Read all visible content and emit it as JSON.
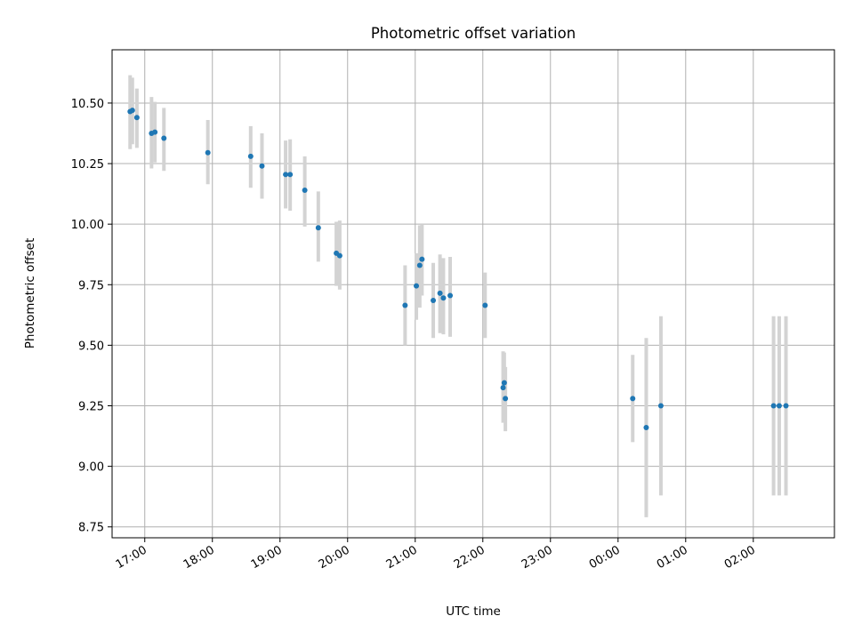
{
  "chart_data": {
    "type": "scatter",
    "title": "Photometric offset variation",
    "xlabel": "UTC time",
    "ylabel": "Photometric offset",
    "x_ticks": [
      "17:00",
      "18:00",
      "19:00",
      "20:00",
      "21:00",
      "22:00",
      "23:00",
      "00:00",
      "01:00",
      "02:00"
    ],
    "y_ticks": [
      "8.75",
      "9.00",
      "9.25",
      "9.50",
      "9.75",
      "10.00",
      "10.25",
      "10.50"
    ],
    "ylim": [
      8.705,
      10.72
    ],
    "xlim": [
      "16:31",
      "27:12"
    ],
    "grid": true,
    "marker_color": "#1f77b4",
    "errorbar_color": "#d3d3d3",
    "points": [
      {
        "t": "16:47",
        "y": 10.465,
        "lo": 10.31,
        "hi": 10.615
      },
      {
        "t": "16:49",
        "y": 10.47,
        "lo": 10.33,
        "hi": 10.605
      },
      {
        "t": "16:53",
        "y": 10.44,
        "lo": 10.315,
        "hi": 10.56
      },
      {
        "t": "17:06",
        "y": 10.375,
        "lo": 10.23,
        "hi": 10.525
      },
      {
        "t": "17:09",
        "y": 10.38,
        "lo": 10.255,
        "hi": 10.505
      },
      {
        "t": "17:17",
        "y": 10.355,
        "lo": 10.22,
        "hi": 10.48
      },
      {
        "t": "17:56",
        "y": 10.295,
        "lo": 10.165,
        "hi": 10.43
      },
      {
        "t": "18:34",
        "y": 10.28,
        "lo": 10.15,
        "hi": 10.405
      },
      {
        "t": "18:44",
        "y": 10.24,
        "lo": 10.105,
        "hi": 10.375
      },
      {
        "t": "19:05",
        "y": 10.205,
        "lo": 10.065,
        "hi": 10.345
      },
      {
        "t": "19:09",
        "y": 10.205,
        "lo": 10.055,
        "hi": 10.35
      },
      {
        "t": "19:22",
        "y": 10.14,
        "lo": 9.99,
        "hi": 10.28
      },
      {
        "t": "19:34",
        "y": 9.985,
        "lo": 9.845,
        "hi": 10.135
      },
      {
        "t": "19:50",
        "y": 9.88,
        "lo": 9.745,
        "hi": 10.01
      },
      {
        "t": "19:53",
        "y": 9.87,
        "lo": 9.73,
        "hi": 10.015
      },
      {
        "t": "20:51",
        "y": 9.665,
        "lo": 9.5,
        "hi": 9.83
      },
      {
        "t": "21:01",
        "y": 9.745,
        "lo": 9.605,
        "hi": 9.88
      },
      {
        "t": "21:04",
        "y": 9.83,
        "lo": 9.655,
        "hi": 9.995
      },
      {
        "t": "21:06",
        "y": 9.855,
        "lo": 9.705,
        "hi": 10.0
      },
      {
        "t": "21:16",
        "y": 9.685,
        "lo": 9.53,
        "hi": 9.84
      },
      {
        "t": "21:22",
        "y": 9.715,
        "lo": 9.55,
        "hi": 9.875
      },
      {
        "t": "21:25",
        "y": 9.695,
        "lo": 9.545,
        "hi": 9.86
      },
      {
        "t": "21:31",
        "y": 9.705,
        "lo": 9.535,
        "hi": 9.865
      },
      {
        "t": "22:02",
        "y": 9.665,
        "lo": 9.53,
        "hi": 9.8
      },
      {
        "t": "22:18",
        "y": 9.325,
        "lo": 9.18,
        "hi": 9.475
      },
      {
        "t": "22:19",
        "y": 9.345,
        "lo": 9.19,
        "hi": 9.47
      },
      {
        "t": "22:20",
        "y": 9.28,
        "lo": 9.145,
        "hi": 9.41
      },
      {
        "t": "24:13",
        "y": 9.28,
        "lo": 9.1,
        "hi": 9.46
      },
      {
        "t": "24:25",
        "y": 9.16,
        "lo": 8.79,
        "hi": 9.53
      },
      {
        "t": "24:38",
        "y": 9.25,
        "lo": 8.88,
        "hi": 9.62
      },
      {
        "t": "26:18",
        "y": 9.25,
        "lo": 8.88,
        "hi": 9.62
      },
      {
        "t": "26:23",
        "y": 9.25,
        "lo": 8.88,
        "hi": 9.62
      },
      {
        "t": "26:29",
        "y": 9.25,
        "lo": 8.88,
        "hi": 9.62
      }
    ]
  }
}
